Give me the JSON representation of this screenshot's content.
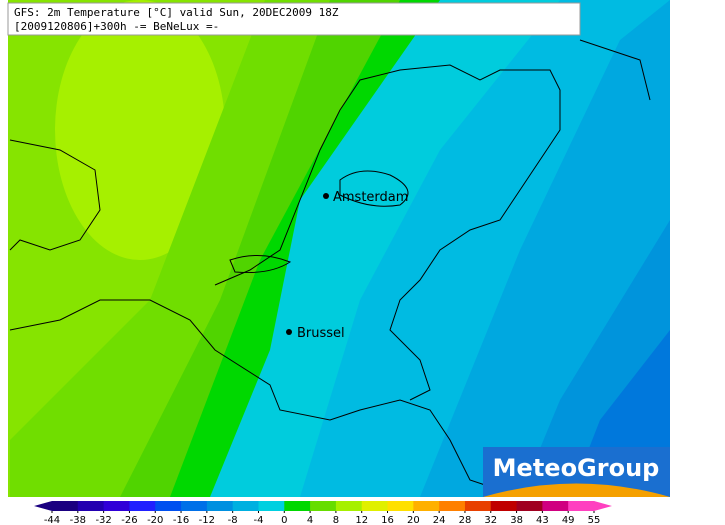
{
  "header": {
    "line1": "GFS: 2m Temperature [°C] valid Sun, 20DEC2009 18Z",
    "line2": "[2009120806]+300h -= BeNeLux =-"
  },
  "cities": [
    {
      "label": "Amsterdam"
    },
    {
      "label": "Brussel"
    }
  ],
  "logo": {
    "text": "MeteoGroup"
  },
  "colorbar": {
    "ticks": [
      -44,
      -38,
      -32,
      -26,
      -20,
      -16,
      -12,
      -8,
      -4,
      0,
      4,
      8,
      12,
      16,
      20,
      24,
      28,
      32,
      38,
      43,
      49,
      55
    ],
    "colors": [
      "#1a0080",
      "#2200b0",
      "#3000d8",
      "#2020ff",
      "#0050f0",
      "#0070e8",
      "#0090e0",
      "#00b0e0",
      "#00d0e0",
      "#00d800",
      "#66dd00",
      "#a6f000",
      "#e0f000",
      "#ffe000",
      "#ffb000",
      "#ff8000",
      "#e84000",
      "#c00000",
      "#a00020",
      "#d00080",
      "#ff40c0"
    ]
  }
}
